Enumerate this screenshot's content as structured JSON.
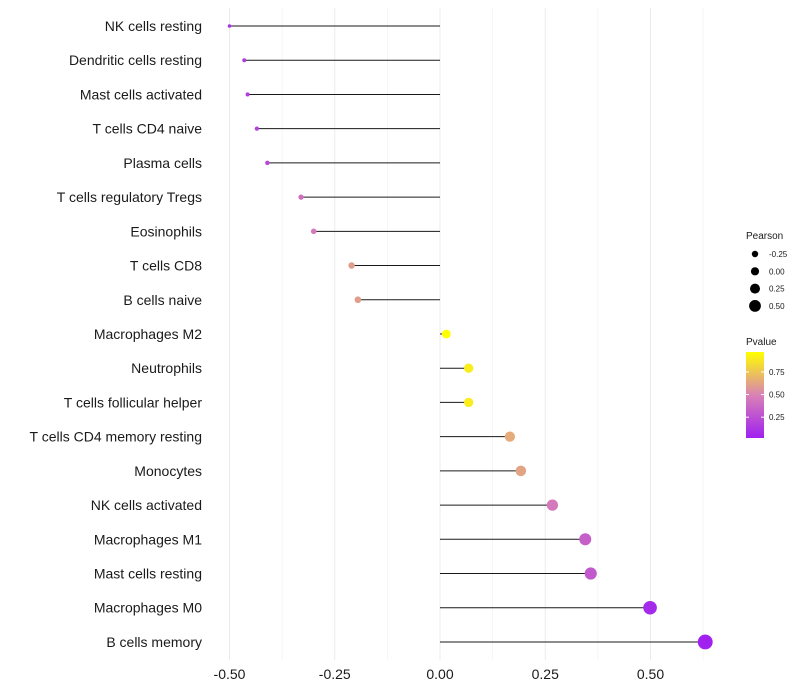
{
  "chart_data": {
    "type": "lollipop",
    "title": "",
    "xlabel": "",
    "ylabel": "",
    "xlim": [
      -0.5,
      0.63
    ],
    "xticks": [
      -0.5,
      -0.25,
      0.0,
      0.25,
      0.5
    ],
    "xtick_labels": [
      "-0.50",
      "-0.25",
      "0.00",
      "0.25",
      "0.50"
    ],
    "grid": true,
    "categories": [
      "NK cells resting",
      "Dendritic cells resting",
      "Mast cells activated",
      "T cells CD4 naive",
      "Plasma cells",
      "T cells regulatory  Tregs ",
      "Eosinophils",
      "T cells CD8",
      "B cells naive",
      "Macrophages M2",
      "Neutrophils",
      "T cells follicular helper",
      "T cells CD4 memory resting",
      "Monocytes",
      "NK cells activated",
      "Macrophages M1",
      "Mast cells resting",
      "Macrophages M0",
      "B cells memory"
    ],
    "pearson": [
      -0.5,
      -0.465,
      -0.457,
      -0.435,
      -0.41,
      -0.33,
      -0.3,
      -0.21,
      -0.195,
      0.015,
      0.068,
      0.068,
      0.166,
      0.192,
      0.267,
      0.345,
      0.358,
      0.499,
      0.63
    ],
    "pvalue": [
      0.1,
      0.15,
      0.16,
      0.18,
      0.22,
      0.4,
      0.45,
      0.6,
      0.6,
      0.97,
      0.9,
      0.9,
      0.65,
      0.62,
      0.45,
      0.33,
      0.3,
      0.07,
      0.02
    ],
    "legend_size": {
      "title": "Pearson",
      "labels": [
        "-0.25",
        "0.00",
        "0.25",
        "0.50"
      ],
      "values": [
        -0.25,
        0.0,
        0.25,
        0.5
      ]
    },
    "legend_color": {
      "title": "Pvalue",
      "labels": [
        "0.75",
        "0.50",
        "0.25"
      ],
      "values": [
        0.75,
        0.5,
        0.25
      ],
      "range": [
        0.02,
        0.97
      ],
      "low_color": "#a020f0",
      "mid_color": "#d982b5",
      "high_color": "#ffff00"
    }
  }
}
